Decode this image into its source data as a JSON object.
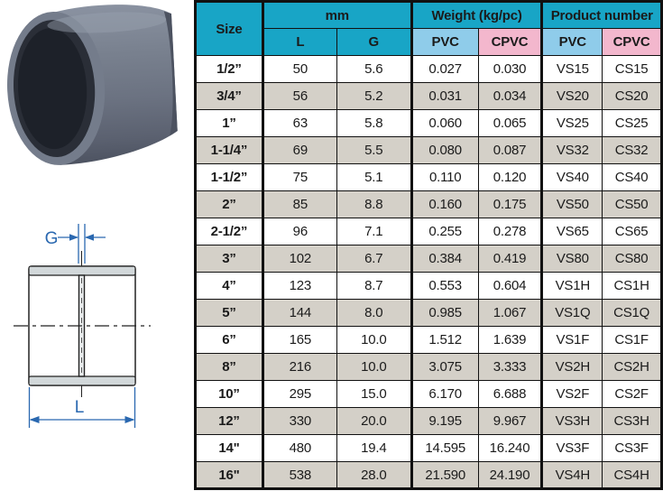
{
  "figure": {
    "photo_caption": "gray PVC socket coupling",
    "diagram_labels": {
      "g": "G",
      "l": "L"
    }
  },
  "colors": {
    "header_teal": "#18a5c6",
    "pvc_blue": "#8fccea",
    "cpvc_pink": "#f3b7cd",
    "alt_row_gray": "#d4d0c8",
    "dimension_blue": "#2a68b0"
  },
  "table": {
    "header": {
      "size": "Size",
      "mm": "mm",
      "weight": "Weight (kg/pc)",
      "product": "Product number",
      "sub_l": "L",
      "sub_g": "G",
      "weight_pvc": "PVC",
      "weight_cpvc": "CPVC",
      "product_pvc": "PVC",
      "product_cpvc": "CPVC"
    },
    "rows": [
      {
        "size": "1/2”",
        "l": "50",
        "g": "5.6",
        "w_pvc": "0.027",
        "w_cpvc": "0.030",
        "p_pvc": "VS15",
        "p_cpvc": "CS15"
      },
      {
        "size": "3/4”",
        "l": "56",
        "g": "5.2",
        "w_pvc": "0.031",
        "w_cpvc": "0.034",
        "p_pvc": "VS20",
        "p_cpvc": "CS20"
      },
      {
        "size": "1”",
        "l": "63",
        "g": "5.8",
        "w_pvc": "0.060",
        "w_cpvc": "0.065",
        "p_pvc": "VS25",
        "p_cpvc": "CS25"
      },
      {
        "size": "1-1/4”",
        "l": "69",
        "g": "5.5",
        "w_pvc": "0.080",
        "w_cpvc": "0.087",
        "p_pvc": "VS32",
        "p_cpvc": "CS32"
      },
      {
        "size": "1-1/2”",
        "l": "75",
        "g": "5.1",
        "w_pvc": "0.110",
        "w_cpvc": "0.120",
        "p_pvc": "VS40",
        "p_cpvc": "CS40"
      },
      {
        "size": "2”",
        "l": "85",
        "g": "8.8",
        "w_pvc": "0.160",
        "w_cpvc": "0.175",
        "p_pvc": "VS50",
        "p_cpvc": "CS50"
      },
      {
        "size": "2-1/2”",
        "l": "96",
        "g": "7.1",
        "w_pvc": "0.255",
        "w_cpvc": "0.278",
        "p_pvc": "VS65",
        "p_cpvc": "CS65"
      },
      {
        "size": "3”",
        "l": "102",
        "g": "6.7",
        "w_pvc": "0.384",
        "w_cpvc": "0.419",
        "p_pvc": "VS80",
        "p_cpvc": "CS80"
      },
      {
        "size": "4”",
        "l": "123",
        "g": "8.7",
        "w_pvc": "0.553",
        "w_cpvc": "0.604",
        "p_pvc": "VS1H",
        "p_cpvc": "CS1H"
      },
      {
        "size": "5”",
        "l": "144",
        "g": "8.0",
        "w_pvc": "0.985",
        "w_cpvc": "1.067",
        "p_pvc": "VS1Q",
        "p_cpvc": "CS1Q"
      },
      {
        "size": "6”",
        "l": "165",
        "g": "10.0",
        "w_pvc": "1.512",
        "w_cpvc": "1.639",
        "p_pvc": "VS1F",
        "p_cpvc": "CS1F"
      },
      {
        "size": "8”",
        "l": "216",
        "g": "10.0",
        "w_pvc": "3.075",
        "w_cpvc": "3.333",
        "p_pvc": "VS2H",
        "p_cpvc": "CS2H"
      },
      {
        "size": "10”",
        "l": "295",
        "g": "15.0",
        "w_pvc": "6.170",
        "w_cpvc": "6.688",
        "p_pvc": "VS2F",
        "p_cpvc": "CS2F"
      },
      {
        "size": "12”",
        "l": "330",
        "g": "20.0",
        "w_pvc": "9.195",
        "w_cpvc": "9.967",
        "p_pvc": "VS3H",
        "p_cpvc": "CS3H"
      },
      {
        "size": "14\"",
        "l": "480",
        "g": "19.4",
        "w_pvc": "14.595",
        "w_cpvc": "16.240",
        "p_pvc": "VS3F",
        "p_cpvc": "CS3F"
      },
      {
        "size": "16\"",
        "l": "538",
        "g": "28.0",
        "w_pvc": "21.590",
        "w_cpvc": "24.190",
        "p_pvc": "VS4H",
        "p_cpvc": "CS4H"
      }
    ]
  }
}
